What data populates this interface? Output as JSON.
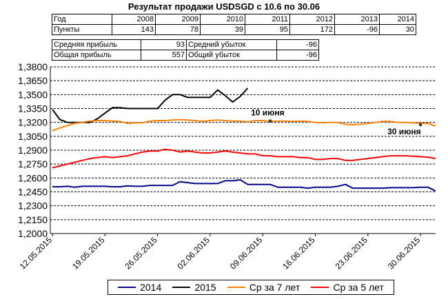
{
  "title": "Результат продажи USDSGD с 10.6 по 30.06",
  "stats_table": {
    "year_label": "Год",
    "years": [
      "2008",
      "2009",
      "2010",
      "2011",
      "2012",
      "2013",
      "2014"
    ],
    "points_label": "Пункты",
    "points": [
      "143",
      "78",
      "39",
      "95",
      "172",
      "-96",
      "30"
    ],
    "avg_profit_label": "Средняя прибыль",
    "avg_profit": "93",
    "avg_loss_label": "Средний убыток",
    "avg_loss": "-96",
    "total_profit_label": "Общая прибыль",
    "total_profit": "557",
    "total_loss_label": "Общий убыток",
    "total_loss": "-96"
  },
  "chart_data": {
    "type": "line",
    "ylim": [
      1.2,
      1.38
    ],
    "y_ticks": [
      "1,2000",
      "1,2150",
      "1,2300",
      "1,2450",
      "1,2600",
      "1,2750",
      "1,2900",
      "1,3050",
      "1,3200",
      "1,3350",
      "1,3500",
      "1,3650",
      "1,3800"
    ],
    "x_ticks": [
      "12.05.2015",
      "19.05.2015",
      "26.05.2015",
      "02.06.2015",
      "09.06.2015",
      "16.06.2015",
      "23.06.2015",
      "30.06.2015"
    ],
    "grid": "horizontal dashed",
    "legend_position": "bottom",
    "annotations": [
      {
        "text": "10 июня",
        "day": 29,
        "value": 1.3215
      },
      {
        "text": "30 июня",
        "day": 49,
        "value": 1.3175
      }
    ],
    "series": [
      {
        "name": "2014",
        "color": "#00008b",
        "values": [
          1.2505,
          1.2505,
          1.251,
          1.25,
          1.251,
          1.251,
          1.251,
          1.251,
          1.2505,
          1.2505,
          1.2515,
          1.251,
          1.251,
          1.252,
          1.252,
          1.252,
          1.252,
          1.256,
          1.255,
          1.254,
          1.254,
          1.254,
          1.254,
          1.257,
          1.257,
          1.258,
          1.253,
          1.253,
          1.253,
          1.253,
          1.25,
          1.25,
          1.25,
          1.25,
          1.249,
          1.25,
          1.25,
          1.25,
          1.251,
          1.253,
          1.249,
          1.249,
          1.249,
          1.249,
          1.249,
          1.2495,
          1.2495,
          1.2495,
          1.2495,
          1.25,
          1.25,
          1.246
        ]
      },
      {
        "name": "2015",
        "color": "#000000",
        "values": [
          1.334,
          1.323,
          1.32,
          1.32,
          1.32,
          1.32,
          1.324,
          1.33,
          1.336,
          1.336,
          1.335,
          1.335,
          1.335,
          1.335,
          1.335,
          1.344,
          1.35,
          1.35,
          1.347,
          1.347,
          1.347,
          1.347,
          1.355,
          1.349,
          1.342,
          1.348,
          1.357
        ]
      },
      {
        "name": "Ср за 7 лет",
        "color": "#ff8000",
        "values": [
          1.311,
          1.314,
          1.3165,
          1.319,
          1.32,
          1.3215,
          1.322,
          1.322,
          1.3215,
          1.321,
          1.319,
          1.3195,
          1.3195,
          1.3215,
          1.322,
          1.322,
          1.3225,
          1.323,
          1.3225,
          1.322,
          1.321,
          1.322,
          1.3225,
          1.322,
          1.3215,
          1.3215,
          1.3205,
          1.322,
          1.322,
          1.321,
          1.3215,
          1.3215,
          1.321,
          1.3215,
          1.321,
          1.32,
          1.3195,
          1.32,
          1.32,
          1.318,
          1.3175,
          1.318,
          1.319,
          1.32,
          1.321,
          1.321,
          1.32,
          1.32,
          1.3195,
          1.319,
          1.319,
          1.316
        ]
      },
      {
        "name": "Ср за 5 лет",
        "color": "#ff0000",
        "values": [
          1.271,
          1.273,
          1.275,
          1.277,
          1.279,
          1.281,
          1.282,
          1.283,
          1.282,
          1.283,
          1.284,
          1.286,
          1.288,
          1.289,
          1.289,
          1.291,
          1.29,
          1.288,
          1.289,
          1.288,
          1.287,
          1.287,
          1.288,
          1.289,
          1.288,
          1.287,
          1.286,
          1.286,
          1.284,
          1.284,
          1.283,
          1.283,
          1.283,
          1.282,
          1.282,
          1.28,
          1.28,
          1.281,
          1.281,
          1.279,
          1.279,
          1.28,
          1.281,
          1.282,
          1.283,
          1.284,
          1.284,
          1.284,
          1.2835,
          1.283,
          1.2825,
          1.281
        ]
      }
    ]
  }
}
